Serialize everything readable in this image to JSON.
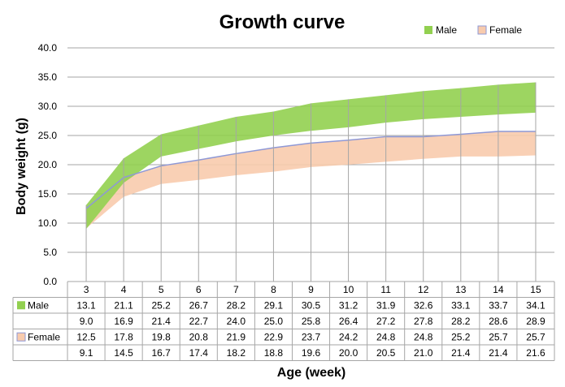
{
  "chart_data": {
    "type": "area",
    "title": "Growth curve",
    "xlabel": "Age (week)",
    "ylabel": "Body weight (g)",
    "ylim": [
      0,
      40
    ],
    "yticks": [
      "0.0",
      "5.0",
      "10.0",
      "15.0",
      "20.0",
      "25.0",
      "30.0",
      "35.0",
      "40.0"
    ],
    "grid": true,
    "legend_position": "top-right",
    "categories": [
      "3",
      "4",
      "5",
      "6",
      "7",
      "8",
      "9",
      "10",
      "11",
      "12",
      "13",
      "14",
      "15"
    ],
    "series": [
      {
        "name": "Male",
        "color": "#92d050",
        "upper": [
          13.1,
          21.1,
          25.2,
          26.7,
          28.2,
          29.1,
          30.5,
          31.2,
          31.9,
          32.6,
          33.1,
          33.7,
          34.1
        ],
        "lower": [
          9.0,
          16.9,
          21.4,
          22.7,
          24.0,
          25.0,
          25.8,
          26.4,
          27.2,
          27.8,
          28.2,
          28.6,
          28.9
        ],
        "upper_text": [
          "13.1",
          "21.1",
          "25.2",
          "26.7",
          "28.2",
          "29.1",
          "30.5",
          "31.2",
          "31.9",
          "32.6",
          "33.1",
          "33.7",
          "34.1"
        ],
        "lower_text": [
          "9.0",
          "16.9",
          "21.4",
          "22.7",
          "24.0",
          "25.0",
          "25.8",
          "26.4",
          "27.2",
          "27.8",
          "28.2",
          "28.6",
          "28.9"
        ]
      },
      {
        "name": "Female",
        "color": "#f8cbad",
        "edge_color": "#8e98d6",
        "upper": [
          12.5,
          17.8,
          19.8,
          20.8,
          21.9,
          22.9,
          23.7,
          24.2,
          24.8,
          24.8,
          25.2,
          25.7,
          25.7
        ],
        "lower": [
          9.1,
          14.5,
          16.7,
          17.4,
          18.2,
          18.8,
          19.6,
          20.0,
          20.5,
          21.0,
          21.4,
          21.4,
          21.6
        ],
        "upper_text": [
          "12.5",
          "17.8",
          "19.8",
          "20.8",
          "21.9",
          "22.9",
          "23.7",
          "24.2",
          "24.8",
          "24.8",
          "25.2",
          "25.7",
          "25.7"
        ],
        "lower_text": [
          "9.1",
          "14.5",
          "16.7",
          "17.4",
          "18.2",
          "18.8",
          "19.6",
          "20.0",
          "20.5",
          "21.0",
          "21.4",
          "21.4",
          "21.6"
        ]
      }
    ]
  }
}
